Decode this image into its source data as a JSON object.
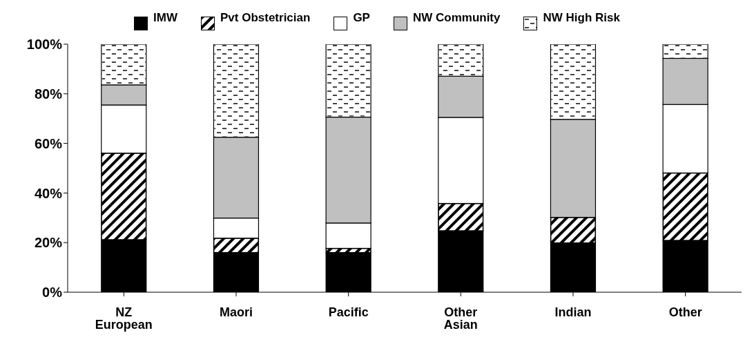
{
  "chart_data": {
    "type": "bar",
    "stacked": true,
    "legend": "top",
    "categories": [
      "NZ European",
      "Maori",
      "Pacific",
      "Other Asian",
      "Indian",
      "Other"
    ],
    "series": [
      {
        "name": "IMW",
        "color": "#000000",
        "values": [
          21.1,
          15.9,
          15.9,
          24.7,
          19.8,
          20.8
        ]
      },
      {
        "name": "Pvt Obstetrician",
        "color": "#000000",
        "values": [
          35.0,
          5.9,
          1.8,
          11.1,
          10.4,
          27.3
        ]
      },
      {
        "name": "GP",
        "color": "#ffffff",
        "values": [
          19.4,
          8.1,
          10.2,
          34.7,
          0,
          27.6
        ]
      },
      {
        "name": "NW Community",
        "color": "#c0c0c0",
        "values": [
          8.1,
          32.6,
          42.7,
          16.6,
          39.5,
          18.6
        ]
      },
      {
        "name": "NW High Risk",
        "color": "#ffffff",
        "values": [
          16.4,
          37.5,
          29.4,
          12.9,
          30.3,
          5.7
        ]
      }
    ],
    "ylim": [
      0,
      100
    ],
    "yticks": [
      {
        "value": 0,
        "label": "0%"
      },
      {
        "value": 20,
        "label": "20%"
      },
      {
        "value": 40,
        "label": "40%"
      },
      {
        "value": 60,
        "label": "60%"
      },
      {
        "value": 80,
        "label": "80%"
      },
      {
        "value": 100,
        "label": "100%"
      }
    ]
  }
}
